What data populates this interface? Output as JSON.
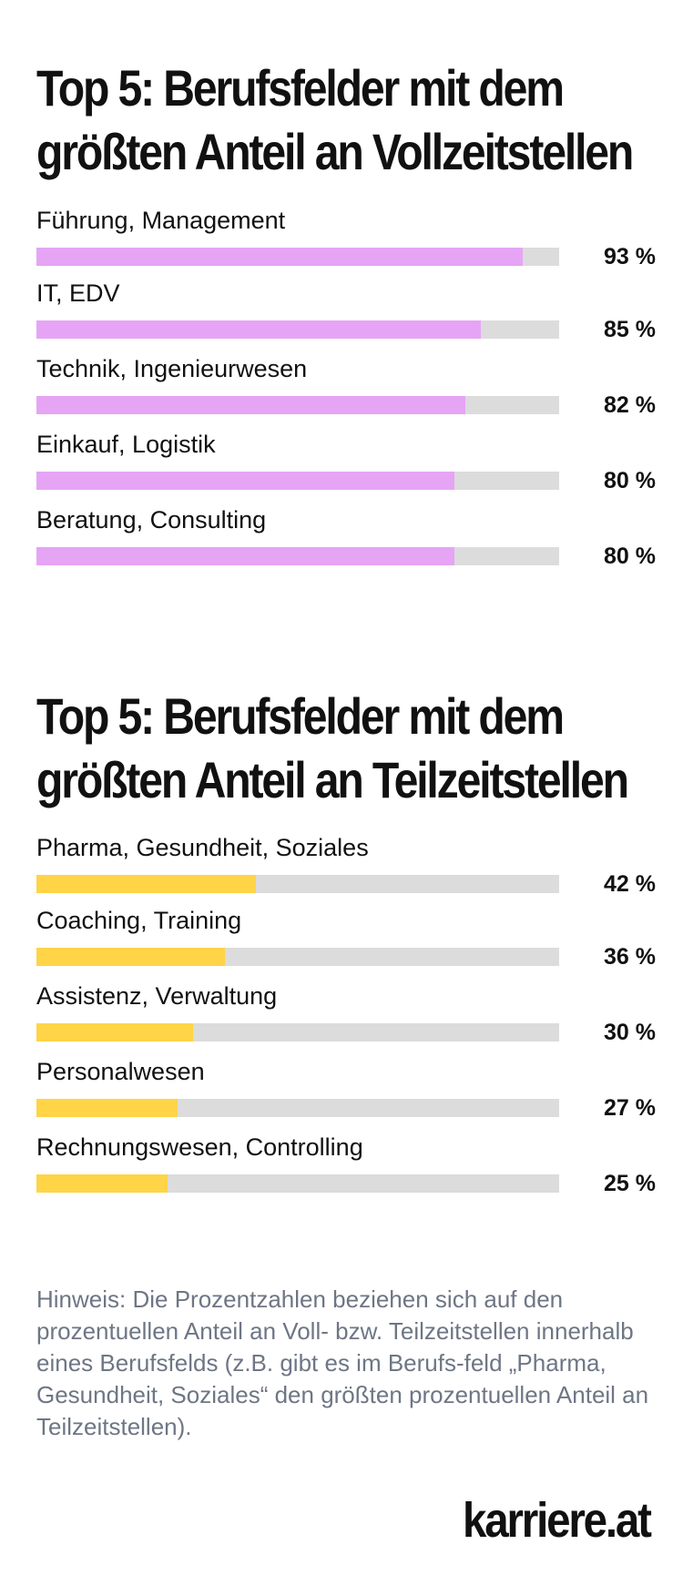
{
  "chart_data": [
    {
      "type": "bar",
      "orientation": "horizontal",
      "title_lines": [
        "Top 5: Berufsfelder mit dem",
        "größten Anteil an Vollzeitstellen"
      ],
      "bar_color": "#e6a4f5",
      "track_color": "#dcdcdc",
      "xlim": [
        0,
        100
      ],
      "bars": [
        {
          "label": "Führung, Management",
          "value": 93,
          "value_label": "93 %"
        },
        {
          "label": "IT, EDV",
          "value": 85,
          "value_label": "85 %"
        },
        {
          "label": "Technik, Ingenieurwesen",
          "value": 82,
          "value_label": "82 %"
        },
        {
          "label": "Einkauf, Logistik",
          "value": 80,
          "value_label": "80 %"
        },
        {
          "label": "Beratung, Consulting",
          "value": 80,
          "value_label": "80 %"
        }
      ]
    },
    {
      "type": "bar",
      "orientation": "horizontal",
      "title_lines": [
        "Top 5: Berufsfelder mit dem",
        "größten Anteil an Teilzeitstellen"
      ],
      "bar_color": "#ffd447",
      "track_color": "#dcdcdc",
      "xlim": [
        0,
        100
      ],
      "bars": [
        {
          "label": "Pharma, Gesundheit, Soziales",
          "value": 42,
          "value_label": "42 %"
        },
        {
          "label": "Coaching, Training",
          "value": 36,
          "value_label": "36 %"
        },
        {
          "label": "Assistenz, Verwaltung",
          "value": 30,
          "value_label": "30 %"
        },
        {
          "label": "Personalwesen",
          "value": 27,
          "value_label": "27 %"
        },
        {
          "label": "Rechnungswesen, Controlling",
          "value": 25,
          "value_label": "25 %"
        }
      ]
    }
  ],
  "footer": {
    "note": "Hinweis: Die Prozentzahlen beziehen sich auf den prozentuellen Anteil an Voll- bzw. Teilzeitstellen innerhalb eines Berufsfelds (z.B. gibt es im Berufs-feld „Pharma, Gesundheit, Soziales“ den größten prozentuellen Anteil an Teilzeitstellen).",
    "brand": "karriere.at"
  }
}
